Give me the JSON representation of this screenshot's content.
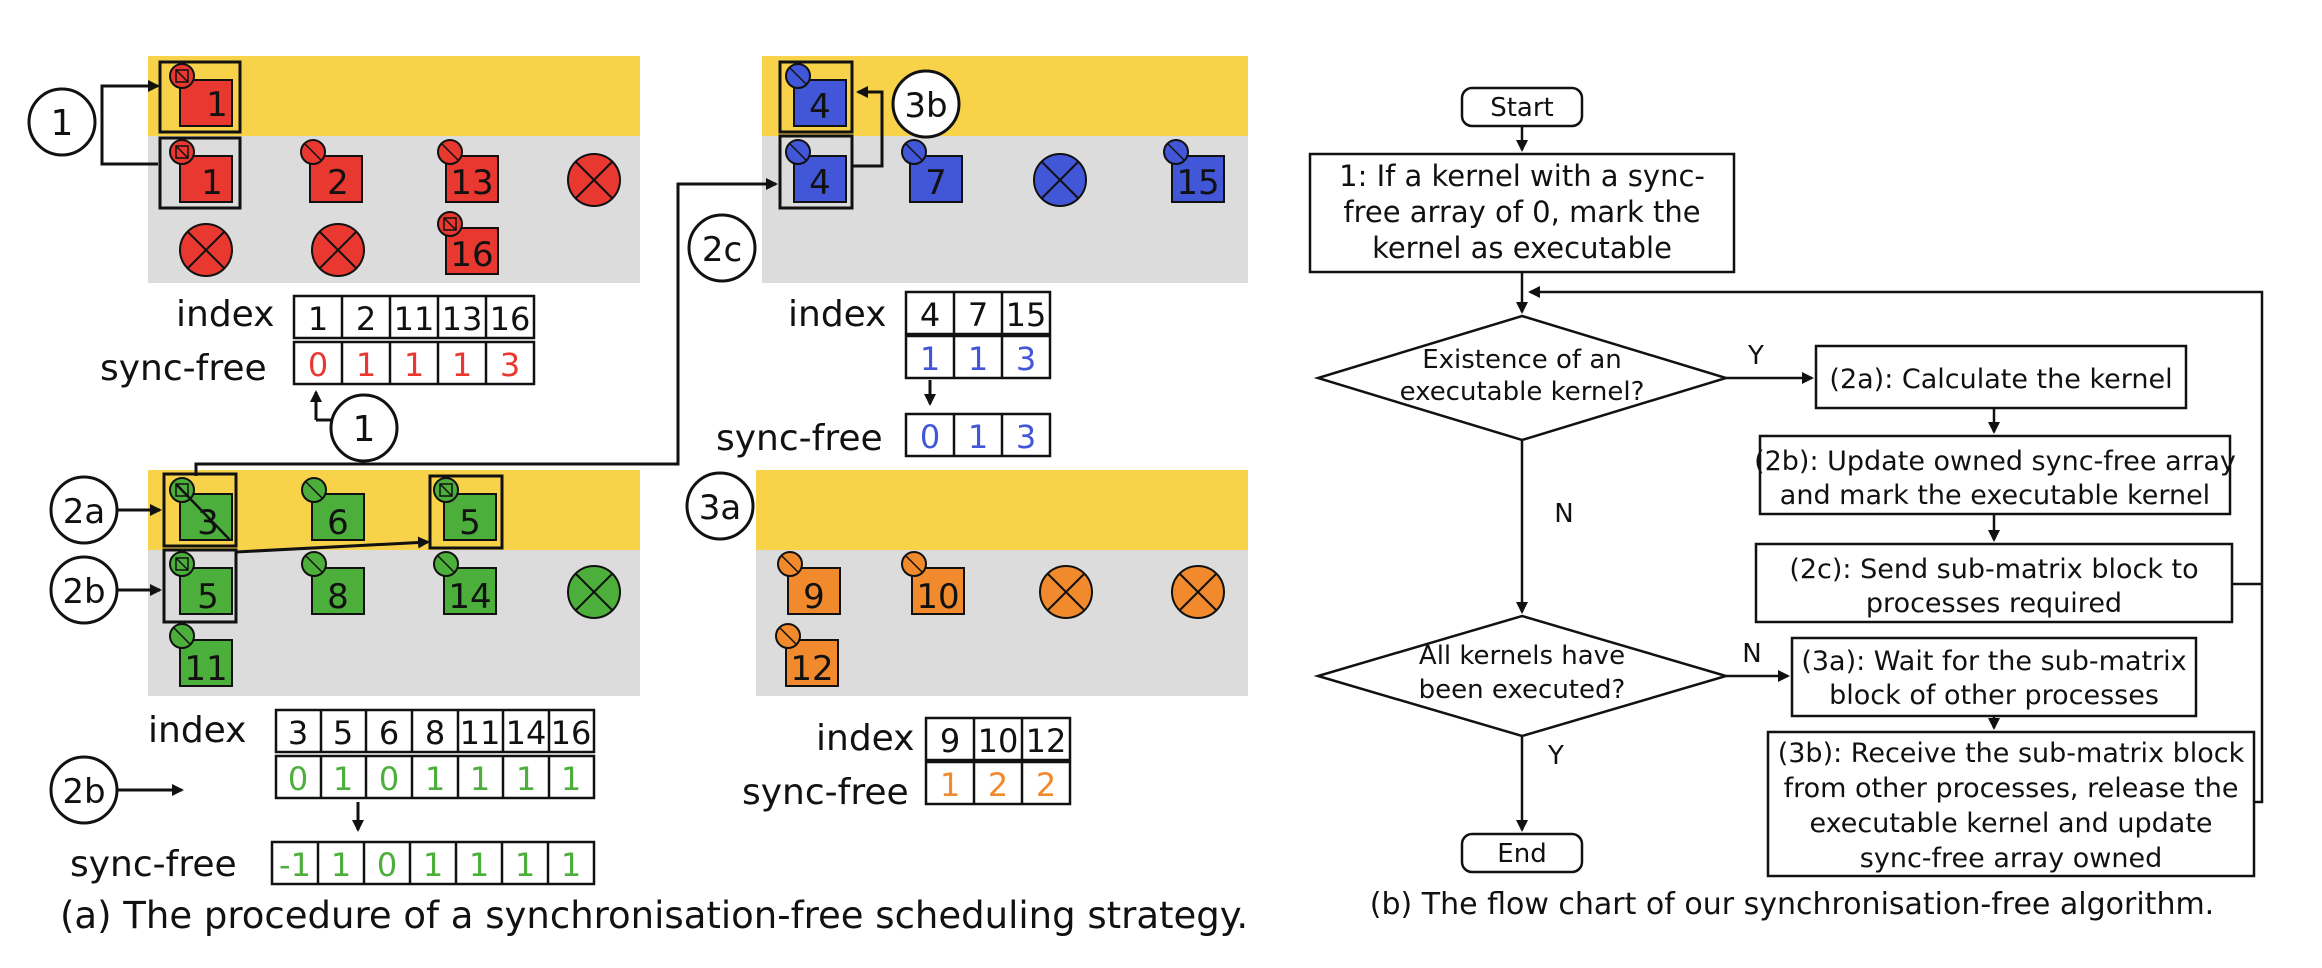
{
  "colors": {
    "yellow_band": "#f8d34a",
    "gray_band": "#dcdcdc",
    "red": "#e8382f",
    "blue": "#4257d8",
    "green": "#4caf3c",
    "orange": "#f08a2c"
  },
  "panel_a": {
    "caption": "(a) The procedure of a synchronisation-free scheduling strategy.",
    "index_label": "index",
    "sync_label": "sync-free",
    "step_labels": {
      "s1": "1",
      "s1b": "1",
      "s2a": "2a",
      "s2b": "2b",
      "s2b_2": "2b",
      "s2c": "2c",
      "s3a": "3a",
      "s3b": "3b"
    },
    "red": {
      "kernels": [
        "1",
        "1",
        "2",
        "13",
        "16"
      ],
      "index": [
        "1",
        "2",
        "11",
        "13",
        "16"
      ],
      "sync": [
        "0",
        "1",
        "1",
        "1",
        "3"
      ]
    },
    "blue": {
      "kernels": [
        "4",
        "4",
        "7",
        "15"
      ],
      "index": [
        "4",
        "7",
        "15"
      ],
      "sync_before": [
        "1",
        "1",
        "3"
      ],
      "sync_after": [
        "0",
        "1",
        "3"
      ]
    },
    "green": {
      "kernels": [
        "3",
        "6",
        "5",
        "5",
        "8",
        "14",
        "11"
      ],
      "index": [
        "3",
        "5",
        "6",
        "8",
        "11",
        "14",
        "16"
      ],
      "sync_before": [
        "0",
        "1",
        "0",
        "1",
        "1",
        "1",
        "1"
      ],
      "sync_after": [
        "-1",
        "1",
        "0",
        "1",
        "1",
        "1",
        "1"
      ]
    },
    "orange": {
      "kernels": [
        "9",
        "10",
        "12"
      ],
      "index": [
        "9",
        "10",
        "12"
      ],
      "sync": [
        "1",
        "2",
        "2"
      ]
    }
  },
  "panel_b": {
    "caption": "(b) The flow chart of our synchronisation-free algorithm.",
    "start": "Start",
    "end": "End",
    "step1": [
      "1: If a kernel with a sync-",
      "free array of 0, mark the",
      "kernel as executable"
    ],
    "decision1": [
      "Existence of an",
      "executable kernel?"
    ],
    "decision2": [
      "All kernels have",
      "been executed?"
    ],
    "step2a": "(2a): Calculate the kernel",
    "step2b": [
      "(2b): Update owned sync-free array",
      "and mark the executable kernel"
    ],
    "step2c": [
      "(2c): Send sub-matrix block to",
      "processes required"
    ],
    "step3a": [
      "(3a): Wait for the sub-matrix",
      "block of other processes"
    ],
    "step3b": [
      "(3b): Receive the sub-matrix block",
      "from other processes, release the",
      "executable kernel and update",
      "sync-free array owned"
    ],
    "yes": "Y",
    "no": "N"
  }
}
